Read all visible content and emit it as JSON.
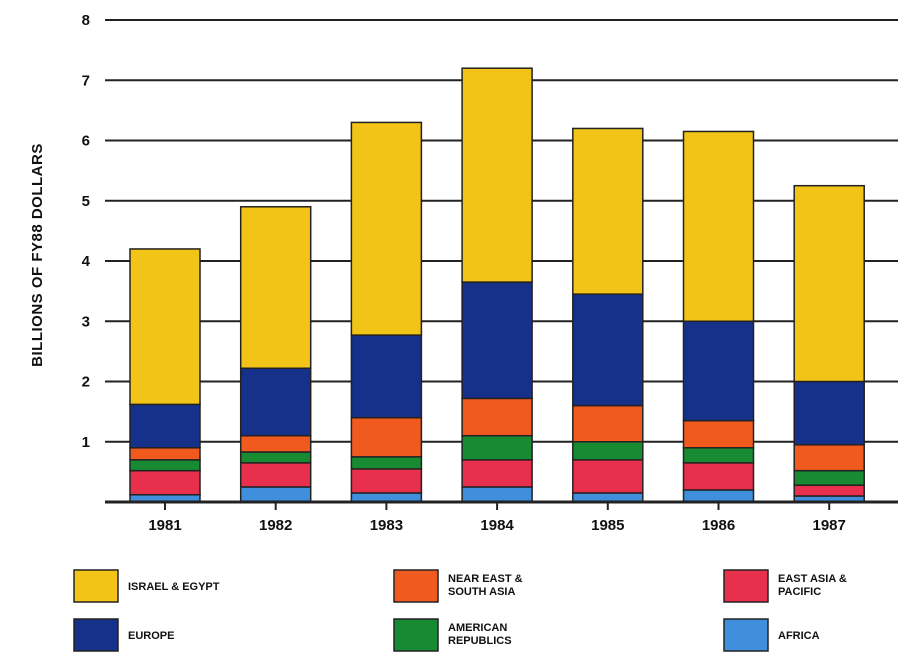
{
  "chart_data": {
    "type": "bar",
    "stacked": true,
    "title": "",
    "xlabel": "",
    "ylabel": "BILLIONS OF FY88 DOLLARS",
    "ylim": [
      0,
      8
    ],
    "yticks": [
      1,
      2,
      3,
      4,
      5,
      6,
      7,
      8
    ],
    "grid": true,
    "legend_position": "bottom",
    "categories": [
      "1981",
      "1982",
      "1983",
      "1984",
      "1985",
      "1986",
      "1987"
    ],
    "series": [
      {
        "name": "AFRICA",
        "color": "#3f8fdc",
        "values": [
          0.12,
          0.25,
          0.15,
          0.25,
          0.15,
          0.2,
          0.1
        ]
      },
      {
        "name": "EAST ASIA & PACIFIC",
        "color": "#e8304c",
        "values": [
          0.4,
          0.4,
          0.4,
          0.45,
          0.55,
          0.45,
          0.18
        ]
      },
      {
        "name": "AMERICAN REPUBLICS",
        "color": "#178a32",
        "values": [
          0.18,
          0.18,
          0.2,
          0.4,
          0.3,
          0.25,
          0.24
        ]
      },
      {
        "name": "NEAR EAST & SOUTH ASIA",
        "color": "#f05a1e",
        "values": [
          0.2,
          0.27,
          0.65,
          0.62,
          0.6,
          0.45,
          0.43
        ]
      },
      {
        "name": "EUROPE",
        "color": "#16318a",
        "values": [
          0.72,
          1.12,
          1.37,
          1.93,
          1.85,
          1.65,
          1.05
        ]
      },
      {
        "name": "ISRAEL & EGYPT",
        "color": "#f2c417",
        "values": [
          2.58,
          2.68,
          3.53,
          3.55,
          2.75,
          3.15,
          3.25
        ]
      }
    ],
    "legend": [
      {
        "label_lines": [
          "ISRAEL & EGYPT"
        ],
        "color": "#f2c417"
      },
      {
        "label_lines": [
          "NEAR EAST &",
          "SOUTH ASIA"
        ],
        "color": "#f05a1e"
      },
      {
        "label_lines": [
          "EAST ASIA &",
          "PACIFIC"
        ],
        "color": "#e8304c"
      },
      {
        "label_lines": [
          "EUROPE"
        ],
        "color": "#16318a"
      },
      {
        "label_lines": [
          "AMERICAN",
          "REPUBLICS"
        ],
        "color": "#178a32"
      },
      {
        "label_lines": [
          "AFRICA"
        ],
        "color": "#3f8fdc"
      }
    ]
  }
}
